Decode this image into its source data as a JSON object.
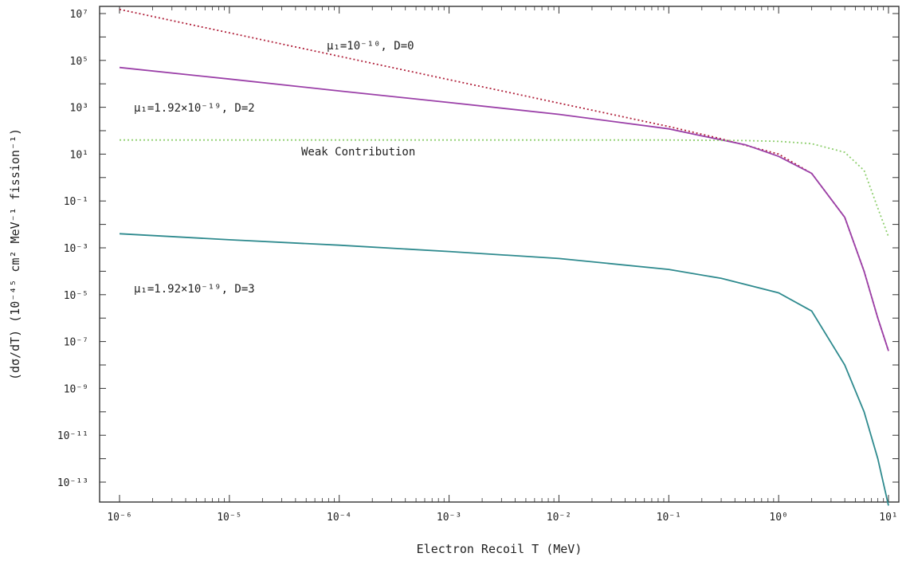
{
  "chart_data": {
    "type": "line",
    "xlabel": "Electron Recoil T (MeV)",
    "ylabel": "(dσ/dT) (10⁻⁴⁵ cm² MeV⁻¹ fission⁻¹)",
    "x_scale": "log",
    "y_scale": "log",
    "xlim": [
      1e-06,
      10
    ],
    "ylim": [
      1e-14,
      10000000.0
    ],
    "x_ticks": [
      {
        "value": 1e-06,
        "label": "10⁻⁶"
      },
      {
        "value": 1e-05,
        "label": "10⁻⁵"
      },
      {
        "value": 0.0001,
        "label": "10⁻⁴"
      },
      {
        "value": 0.001,
        "label": "10⁻³"
      },
      {
        "value": 0.01,
        "label": "10⁻²"
      },
      {
        "value": 0.1,
        "label": "10⁻¹"
      },
      {
        "value": 1,
        "label": "10⁰"
      },
      {
        "value": 10,
        "label": "10¹"
      }
    ],
    "y_ticks": [
      {
        "value": 10000000.0,
        "label": "10⁷"
      },
      {
        "value": 100000.0,
        "label": "10⁵"
      },
      {
        "value": 1000.0,
        "label": "10³"
      },
      {
        "value": 10.0,
        "label": "10¹"
      },
      {
        "value": 0.1,
        "label": "10⁻¹"
      },
      {
        "value": 0.001,
        "label": "10⁻³"
      },
      {
        "value": 1e-05,
        "label": "10⁻⁵"
      },
      {
        "value": 1e-07,
        "label": "10⁻⁷"
      },
      {
        "value": 1e-09,
        "label": "10⁻⁹"
      },
      {
        "value": 1e-11,
        "label": "10⁻¹¹"
      },
      {
        "value": 1e-13,
        "label": "10⁻¹³"
      }
    ],
    "grid": false,
    "series": [
      {
        "name": "μ₁=10⁻¹⁰, D=0",
        "color": "#b0203a",
        "style": "dotted",
        "x": [
          1e-06,
          1e-05,
          0.0001,
          0.001,
          0.01,
          0.1,
          0.3,
          1,
          2,
          4,
          6,
          8,
          10
        ],
        "y": [
          15000000.0,
          1500000.0,
          150000.0,
          15000.0,
          1500.0,
          150,
          45,
          10,
          1.5,
          0.02,
          0.0001,
          1e-06,
          4e-08
        ]
      },
      {
        "name": "μ₁=1.92×10⁻¹⁹, D=2",
        "color": "#9b40a8",
        "style": "solid",
        "x": [
          1e-06,
          1e-05,
          0.0001,
          0.001,
          0.01,
          0.1,
          0.2,
          0.5,
          1,
          2,
          4,
          6,
          8,
          10
        ],
        "y": [
          50000.0,
          16000.0,
          5000.0,
          1600.0,
          500,
          120,
          60,
          25,
          8,
          1.5,
          0.02,
          0.0001,
          1e-06,
          4e-08
        ]
      },
      {
        "name": "Weak Contribution",
        "color": "#8fcf6f",
        "style": "dotted",
        "x": [
          1e-06,
          1e-05,
          0.0001,
          0.001,
          0.01,
          0.1,
          0.5,
          1,
          2,
          4,
          6,
          8,
          10
        ],
        "y": [
          40,
          40,
          40,
          40,
          40,
          40,
          38,
          35,
          28,
          12,
          2,
          0.05,
          0.003
        ]
      },
      {
        "name": "μ₁=1.92×10⁻¹⁹, D=3",
        "color": "#2e8a8e",
        "style": "solid",
        "x": [
          1e-06,
          1e-05,
          0.0001,
          0.001,
          0.01,
          0.1,
          0.3,
          1,
          2,
          4,
          6,
          8,
          10
        ],
        "y": [
          0.004,
          0.0022,
          0.0013,
          0.0007,
          0.00035,
          0.00012,
          5e-05,
          1.2e-05,
          2e-06,
          1e-08,
          1e-10,
          1e-12,
          1e-14
        ]
      }
    ],
    "annotations": [
      {
        "text": "μ₁=10⁻¹⁰, D=0",
        "series": 0
      },
      {
        "text": "μ₁=1.92×10⁻¹⁹, D=2",
        "series": 1
      },
      {
        "text": "Weak Contribution",
        "series": 2
      },
      {
        "text": "μ₁=1.92×10⁻¹⁹, D=3",
        "series": 3
      }
    ]
  }
}
